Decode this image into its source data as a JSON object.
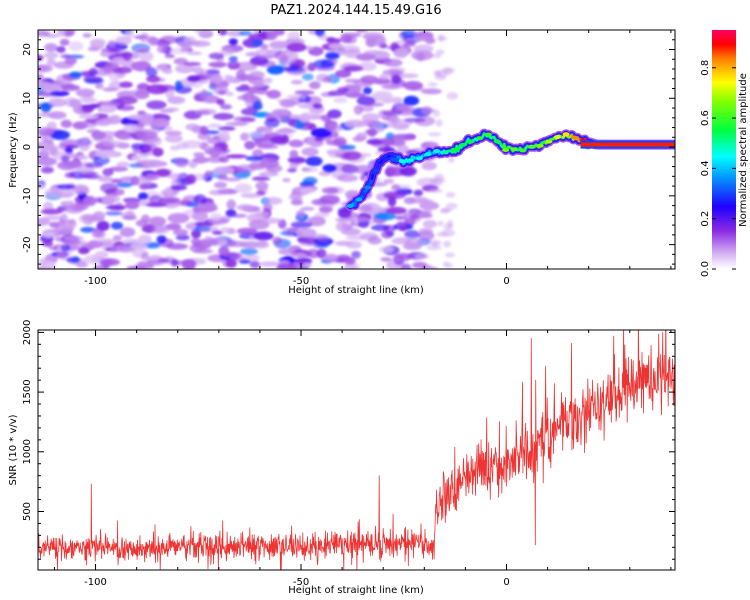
{
  "title": "PAZ1.2024.144.15.49.G16",
  "chart_data": [
    {
      "type": "heatmap",
      "title": "PAZ1.2024.144.15.49.G16",
      "xlabel": "Height of straight line (km)",
      "ylabel": "Frequency (Hz)",
      "xlim": [
        -114,
        41
      ],
      "ylim": [
        -25,
        24
      ],
      "xticks": [
        -100,
        -50,
        0
      ],
      "xtick_labels": [
        "-100",
        "-50",
        "0"
      ],
      "yticks": [
        -20,
        -10,
        0,
        10,
        20
      ],
      "ytick_labels": [
        "-20",
        "-10",
        "0",
        "10",
        "20"
      ],
      "colorbar": {
        "label": "Normalized spectral amplitude",
        "range": [
          0,
          0.95
        ],
        "ticks": [
          0.0,
          0.2,
          0.4,
          0.6,
          0.8
        ],
        "tick_labels": [
          "0.0",
          "0.2",
          "0.4",
          "0.6",
          "0.8"
        ],
        "colors": [
          "#d9b8f5",
          "#7a00ff",
          "#0000ff",
          "#00ffff",
          "#00ff00",
          "#ffff00",
          "#ff0000",
          "#ff0066"
        ]
      },
      "noise_region": {
        "x_range": [
          -114,
          -18
        ],
        "amplitude_range": [
          0.05,
          0.35
        ]
      },
      "signal_trace": {
        "x": [
          -38,
          -35,
          -33,
          -31,
          -28,
          -25,
          -21,
          -17,
          -13,
          -9,
          -5,
          -2,
          0,
          4,
          8,
          12,
          15,
          18,
          22,
          28,
          35,
          41
        ],
        "freq": [
          -12,
          -10,
          -7,
          -3,
          -1.5,
          -3,
          -2,
          -1,
          -1,
          1,
          2.5,
          1,
          0,
          -0.5,
          0.5,
          2,
          2.5,
          1.5,
          0.5,
          0.5,
          0.5,
          0.5
        ],
        "amplitude": [
          0.35,
          0.35,
          0.3,
          0.25,
          0.25,
          0.45,
          0.4,
          0.4,
          0.5,
          0.5,
          0.55,
          0.5,
          0.6,
          0.55,
          0.6,
          0.65,
          0.7,
          0.8,
          0.9,
          0.9,
          0.9,
          0.9
        ]
      },
      "grid": false
    },
    {
      "type": "line",
      "xlabel": "Height of straight line (km)",
      "ylabel": "SNR (10 * v/v)",
      "xlim": [
        -114,
        41
      ],
      "ylim": [
        10,
        2020
      ],
      "xticks": [
        -100,
        -50,
        0
      ],
      "xtick_labels": [
        "-100",
        "-50",
        "0"
      ],
      "yticks": [
        500,
        1000,
        1500,
        2000
      ],
      "ytick_labels": [
        "500",
        "1000",
        "1500",
        "2000"
      ],
      "color": "#ee3333",
      "series": [
        {
          "x": [
            -114,
            -100,
            -90,
            -80,
            -70,
            -60,
            -50,
            -40,
            -30,
            -20,
            -18,
            -16,
            -15,
            -12,
            -10,
            -5,
            0,
            5,
            10,
            15,
            20,
            25,
            30,
            35,
            41
          ],
          "y": [
            180,
            200,
            190,
            210,
            200,
            195,
            210,
            220,
            230,
            240,
            240,
            550,
            700,
            720,
            800,
            850,
            900,
            1000,
            1150,
            1250,
            1350,
            1450,
            1550,
            1600,
            1650
          ]
        }
      ],
      "noise_amplitude": [
        [
          -114,
          90
        ],
        [
          -18,
          110
        ],
        [
          -16,
          220
        ],
        [
          0,
          260
        ],
        [
          41,
          220
        ]
      ],
      "spikes": [
        {
          "x": -101,
          "y": 730
        },
        {
          "x": -31,
          "y": 800
        },
        {
          "x": -17,
          "y": 680
        },
        {
          "x": 6,
          "y": 1950
        },
        {
          "x": 7,
          "y": 220
        },
        {
          "x": 38,
          "y": 2000
        }
      ],
      "grid": false
    }
  ]
}
